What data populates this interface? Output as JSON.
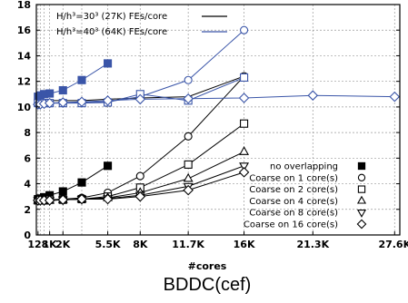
{
  "chart_data": {
    "type": "line",
    "title": "",
    "caption": "BDDC(cef)",
    "xlabel": "#cores",
    "ylabel": "",
    "xlim": [
      0,
      28000
    ],
    "ylim": [
      0,
      18
    ],
    "grid": true,
    "x_ticks": [
      {
        "value": 128,
        "label": "128"
      },
      {
        "value": 1024,
        "label": "1K"
      },
      {
        "value": 2048,
        "label": "2K"
      },
      {
        "value": 5500,
        "label": "5.5K"
      },
      {
        "value": 8000,
        "label": "8K"
      },
      {
        "value": 11700,
        "label": "11.7K"
      },
      {
        "value": 16000,
        "label": "16K"
      },
      {
        "value": 21300,
        "label": "21.3K"
      },
      {
        "value": 27600,
        "label": "27.6K"
      }
    ],
    "y_ticks": [
      0,
      2,
      4,
      6,
      8,
      10,
      12,
      14,
      16,
      18
    ],
    "extra_x_grid": [
      300,
      600,
      3500
    ],
    "legend_top": [
      {
        "label": "H/h³=30³ (27K) FEs/core",
        "color": "#000000"
      },
      {
        "label": "H/h³=40³ (64K) FEs/core",
        "color": "#3a55a8"
      }
    ],
    "legend_bottom": [
      {
        "label": "no overlapping",
        "marker": "filled-square"
      },
      {
        "label": "Coarse on 1 core(s)",
        "marker": "circle"
      },
      {
        "label": "Coarse on 2 core(s)",
        "marker": "square"
      },
      {
        "label": "Coarse on 4 core(s)",
        "marker": "triangle-up"
      },
      {
        "label": "Coarse on 8 core(s)",
        "marker": "triangle-down"
      },
      {
        "label": "Coarse on 16 core(s)",
        "marker": "diamond"
      }
    ],
    "series": [
      {
        "name": "",
        "color": "#000000",
        "marker": "filled-square",
        "x": [
          128,
          300,
          600,
          1024,
          2048,
          3500,
          5500
        ],
        "y": [
          2.8,
          2.85,
          2.95,
          3.1,
          3.4,
          4.1,
          5.4
        ]
      },
      {
        "name": "",
        "color": "#000000",
        "marker": "circle",
        "x": [
          128,
          300,
          600,
          1024,
          2048,
          3500,
          5500,
          8000,
          11700,
          16000
        ],
        "y": [
          2.7,
          2.7,
          2.7,
          2.75,
          2.8,
          2.9,
          3.3,
          4.6,
          7.7,
          12.4
        ]
      },
      {
        "name": "",
        "color": "#000000",
        "marker": "square",
        "x": [
          128,
          300,
          600,
          1024,
          2048,
          3500,
          5500,
          8000,
          11700,
          16000
        ],
        "y": [
          2.7,
          2.7,
          2.7,
          2.75,
          2.75,
          2.8,
          3.0,
          3.7,
          5.5,
          8.7
        ]
      },
      {
        "name": "",
        "color": "#000000",
        "marker": "triangle-up",
        "x": [
          128,
          300,
          600,
          1024,
          2048,
          3500,
          5500,
          8000,
          11700,
          16000
        ],
        "y": [
          2.7,
          2.7,
          2.7,
          2.7,
          2.75,
          2.8,
          2.9,
          3.3,
          4.4,
          6.5
        ]
      },
      {
        "name": "",
        "color": "#000000",
        "marker": "triangle-down",
        "x": [
          128,
          300,
          600,
          1024,
          2048,
          3500,
          5500,
          8000,
          11700,
          16000
        ],
        "y": [
          2.7,
          2.7,
          2.7,
          2.7,
          2.75,
          2.8,
          2.85,
          3.1,
          3.8,
          5.4
        ]
      },
      {
        "name": "",
        "color": "#000000",
        "marker": "diamond",
        "x": [
          128,
          300,
          600,
          1024,
          2048,
          3500,
          5500,
          8000,
          11700,
          16000
        ],
        "y": [
          2.7,
          2.7,
          2.7,
          2.7,
          2.75,
          2.8,
          2.8,
          3.0,
          3.5,
          4.9
        ]
      },
      {
        "name": "",
        "color": "#000000",
        "marker": "none",
        "x": [
          128,
          300,
          600,
          1024,
          2048,
          3500,
          5500,
          8000,
          11700,
          16000
        ],
        "y": [
          10.4,
          10.45,
          10.5,
          10.5,
          10.5,
          10.5,
          10.6,
          10.7,
          10.8,
          12.4
        ]
      },
      {
        "name": "",
        "color": "#3a55a8",
        "marker": "filled-square",
        "x": [
          128,
          300,
          600,
          1024,
          2048,
          3500,
          5500
        ],
        "y": [
          10.8,
          10.9,
          11.0,
          11.05,
          11.3,
          12.1,
          13.4
        ]
      },
      {
        "name": "",
        "color": "#3a55a8",
        "marker": "circle",
        "x": [
          128,
          300,
          600,
          1024,
          2048,
          3500,
          5500,
          8000,
          11700,
          16000
        ],
        "y": [
          10.3,
          10.3,
          10.3,
          10.3,
          10.3,
          10.35,
          10.4,
          10.8,
          12.1,
          16.0
        ]
      },
      {
        "name": "",
        "color": "#3a55a8",
        "marker": "square",
        "x": [
          128,
          300,
          600,
          1024,
          2048,
          3500,
          5500,
          8000,
          11700,
          16000
        ],
        "y": [
          10.3,
          10.3,
          10.3,
          10.3,
          10.3,
          10.3,
          10.35,
          11.0,
          10.5,
          12.3
        ]
      },
      {
        "name": "",
        "color": "#3a55a8",
        "marker": "diamond",
        "x": [
          128,
          300,
          600,
          1024,
          2048,
          3500,
          5500,
          8000,
          11700,
          16000,
          21300,
          27600
        ],
        "y": [
          10.2,
          10.2,
          10.25,
          10.3,
          10.35,
          10.4,
          10.5,
          10.6,
          10.65,
          10.7,
          10.9,
          10.8
        ]
      }
    ]
  }
}
